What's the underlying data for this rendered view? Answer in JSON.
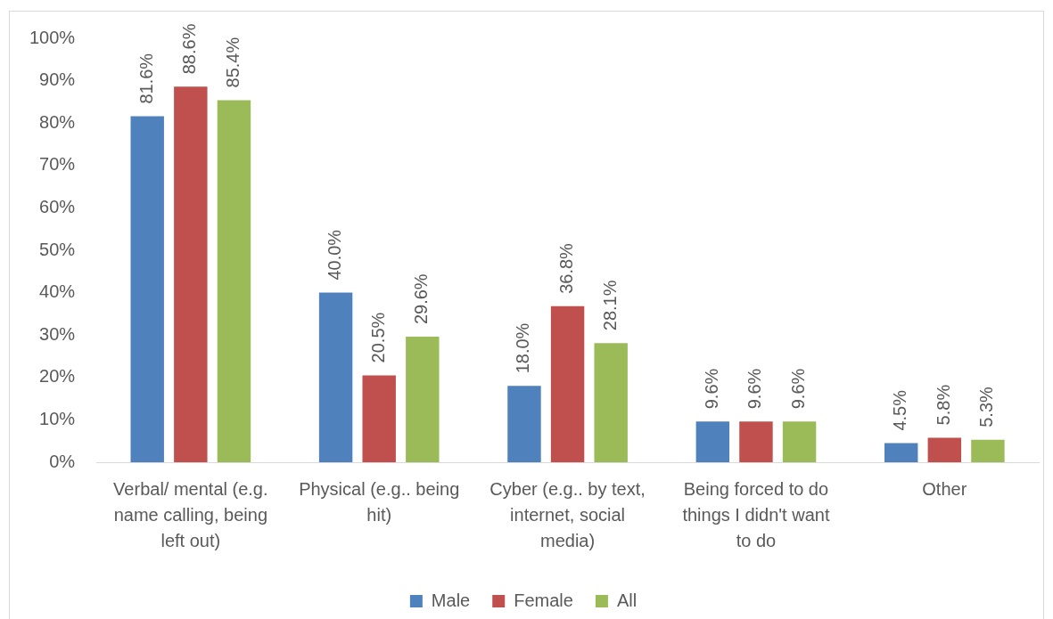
{
  "chart_data": {
    "type": "bar",
    "categories": [
      "Verbal/ mental (e.g. name calling, being left out)",
      "Physical (e.g.. being hit)",
      "Cyber (e.g.. by text, internet, social media)",
      "Being forced to do things I didn't want to do",
      "Other"
    ],
    "series": [
      {
        "name": "Male",
        "color": "#4f81bd",
        "values": [
          81.6,
          40.0,
          18.0,
          9.6,
          4.5
        ],
        "value_labels": [
          "81.6%",
          "40.0%",
          "18.0%",
          "9.6%",
          "4.5%"
        ]
      },
      {
        "name": "Female",
        "color": "#c0504d",
        "values": [
          88.6,
          20.5,
          36.8,
          9.6,
          5.8
        ],
        "value_labels": [
          "88.6%",
          "20.5%",
          "36.8%",
          "9.6%",
          "5.8%"
        ]
      },
      {
        "name": "All",
        "color": "#9bbb59",
        "values": [
          85.4,
          29.6,
          28.1,
          9.6,
          5.3
        ],
        "value_labels": [
          "85.4%",
          "29.6%",
          "28.1%",
          "9.6%",
          "5.3%"
        ]
      }
    ],
    "ylim": [
      0,
      100
    ],
    "yticks": [
      {
        "value": 0,
        "label": "0%"
      },
      {
        "value": 10,
        "label": "10%"
      },
      {
        "value": 20,
        "label": "20%"
      },
      {
        "value": 30,
        "label": "30%"
      },
      {
        "value": 40,
        "label": "40%"
      },
      {
        "value": 50,
        "label": "50%"
      },
      {
        "value": 60,
        "label": "60%"
      },
      {
        "value": 70,
        "label": "70%"
      },
      {
        "value": 80,
        "label": "80%"
      },
      {
        "value": 90,
        "label": "90%"
      },
      {
        "value": 100,
        "label": "100%"
      }
    ],
    "legend": "bottom"
  }
}
